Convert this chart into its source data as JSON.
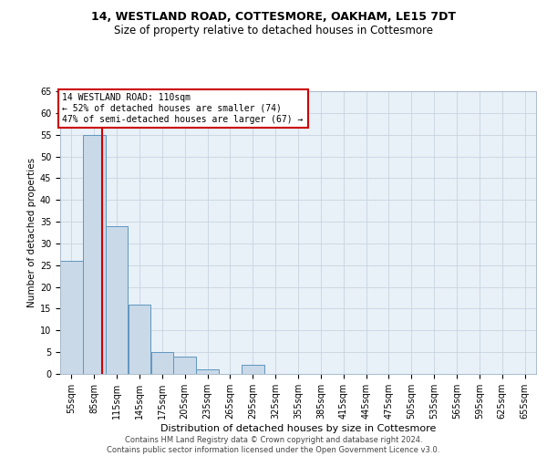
{
  "title1": "14, WESTLAND ROAD, COTTESMORE, OAKHAM, LE15 7DT",
  "title2": "Size of property relative to detached houses in Cottesmore",
  "xlabel": "Distribution of detached houses by size in Cottesmore",
  "ylabel": "Number of detached properties",
  "bin_labels": [
    "55sqm",
    "85sqm",
    "115sqm",
    "145sqm",
    "175sqm",
    "205sqm",
    "235sqm",
    "265sqm",
    "295sqm",
    "325sqm",
    "355sqm",
    "385sqm",
    "415sqm",
    "445sqm",
    "475sqm",
    "505sqm",
    "535sqm",
    "565sqm",
    "595sqm",
    "625sqm",
    "655sqm"
  ],
  "bin_edges": [
    55,
    85,
    115,
    145,
    175,
    205,
    235,
    265,
    295,
    325,
    355,
    385,
    415,
    445,
    475,
    505,
    535,
    565,
    595,
    625,
    655
  ],
  "bar_values": [
    26,
    55,
    34,
    16,
    5,
    4,
    1,
    0,
    2,
    0,
    0,
    0,
    0,
    0,
    0,
    0,
    0,
    0,
    0,
    0
  ],
  "bar_color": "#c9d9e8",
  "bar_edge_color": "#6096bf",
  "property_size": 110,
  "vline_color": "#cc0000",
  "annotation_text": "14 WESTLAND ROAD: 110sqm\n← 52% of detached houses are smaller (74)\n47% of semi-detached houses are larger (67) →",
  "annotation_box_color": "#cc0000",
  "ylim": [
    0,
    65
  ],
  "yticks": [
    0,
    5,
    10,
    15,
    20,
    25,
    30,
    35,
    40,
    45,
    50,
    55,
    60,
    65
  ],
  "grid_color": "#c8d4e0",
  "bg_color": "#e8f0f8",
  "footer": "Contains HM Land Registry data © Crown copyright and database right 2024.\nContains public sector information licensed under the Open Government Licence v3.0.",
  "title1_fontsize": 9,
  "title2_fontsize": 8.5,
  "xlabel_fontsize": 8,
  "ylabel_fontsize": 7.5,
  "annot_fontsize": 7,
  "tick_fontsize": 7,
  "footer_fontsize": 6
}
